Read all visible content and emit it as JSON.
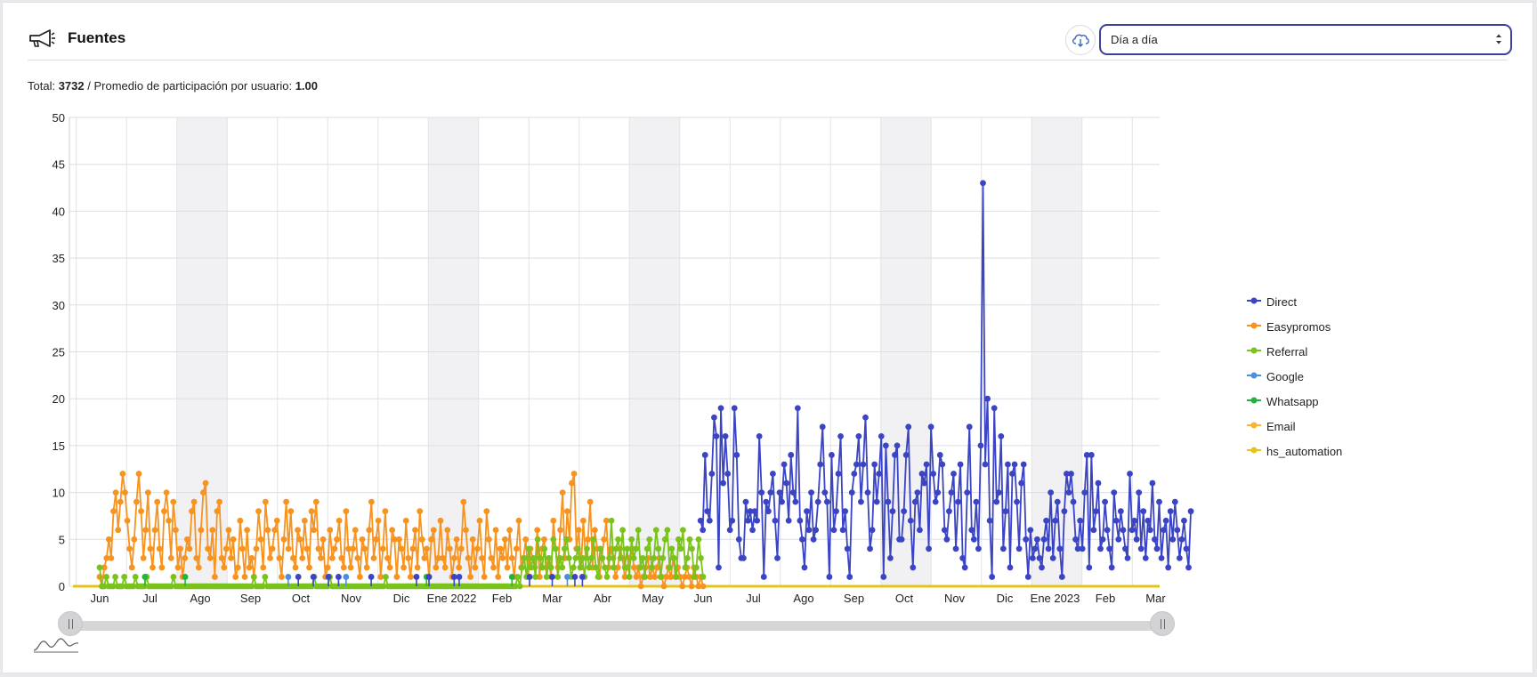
{
  "header": {
    "title": "Fuentes",
    "download_icon": "cloud-download-icon",
    "section_icon": "megaphone-icon",
    "period_select": {
      "value": "Día a día",
      "options_visible": [
        "Día a día"
      ]
    }
  },
  "summary": {
    "total_label": "Total:",
    "total_value": "3732",
    "separator": "/",
    "avg_label": "Promedio de participación por usuario:",
    "avg_value": "1.00"
  },
  "legend": [
    {
      "name": "Direct",
      "color": "#3a44c4"
    },
    {
      "name": "Easypromos",
      "color": "#f7931e"
    },
    {
      "name": "Referral",
      "color": "#7ac31c"
    },
    {
      "name": "Google",
      "color": "#4a8fe0"
    },
    {
      "name": "Whatsapp",
      "color": "#22b43c"
    },
    {
      "name": "Email",
      "color": "#fbb32b"
    },
    {
      "name": "hs_automation",
      "color": "#e5c419"
    }
  ],
  "chart_data": {
    "type": "line",
    "ylim": [
      0,
      50
    ],
    "yticks": [
      0,
      5,
      10,
      15,
      20,
      25,
      30,
      35,
      40,
      45,
      50
    ],
    "grid": true,
    "legend_position": "right",
    "x_ticks": [
      "Jun",
      "Jul",
      "Ago",
      "Sep",
      "Oct",
      "Nov",
      "Dic",
      "Ene 2022",
      "Feb",
      "Mar",
      "Abr",
      "May",
      "Jun",
      "Jul",
      "Ago",
      "Sep",
      "Oct",
      "Nov",
      "Dic",
      "Ene 2023",
      "Feb",
      "Mar"
    ],
    "weekend_bands": [
      2,
      7,
      11,
      16,
      19
    ],
    "series": [
      {
        "name": "Easypromos",
        "color": "#f7931e",
        "x_range": [
          0,
          12.0
        ],
        "values": [
          1,
          0,
          2,
          3,
          5,
          3,
          8,
          10,
          6,
          9,
          12,
          10,
          7,
          4,
          2,
          5,
          9,
          12,
          8,
          3,
          6,
          10,
          4,
          2,
          6,
          9,
          4,
          2,
          8,
          10,
          7,
          3,
          9,
          6,
          2,
          4,
          1,
          3,
          5,
          4,
          8,
          9,
          3,
          2,
          6,
          10,
          11,
          4,
          3,
          6,
          1,
          8,
          9,
          3,
          2,
          4,
          6,
          3,
          5,
          1,
          2,
          7,
          4,
          1,
          6,
          2,
          3,
          1,
          4,
          8,
          5,
          2,
          9,
          6,
          3,
          4,
          6,
          7,
          3,
          1,
          5,
          9,
          4,
          8,
          3,
          2,
          6,
          5,
          3,
          7,
          4,
          2,
          8,
          6,
          9,
          4,
          3,
          5,
          1,
          2,
          6,
          3,
          4,
          5,
          7,
          3,
          2,
          8,
          4,
          2,
          4,
          6,
          3,
          1,
          5,
          4,
          2,
          6,
          9,
          3,
          5,
          7,
          1,
          4,
          8,
          3,
          2,
          6,
          5,
          1,
          5,
          4,
          2,
          7,
          3,
          1,
          4,
          6,
          2,
          8,
          5,
          3,
          4,
          1,
          5,
          6,
          2,
          3,
          7,
          3,
          2,
          6,
          4,
          1,
          3,
          5,
          2,
          4,
          9,
          6,
          3,
          1,
          5,
          2,
          4,
          7,
          3,
          1,
          8,
          5,
          3,
          2,
          6,
          1,
          4,
          3,
          5,
          2,
          6,
          3,
          1,
          4,
          7,
          2,
          3,
          5,
          1,
          4,
          3,
          2,
          6,
          1,
          4,
          5,
          2,
          3,
          1,
          7,
          4,
          2,
          6,
          10,
          3,
          8,
          5,
          11,
          12,
          4,
          6,
          2,
          7,
          3,
          5,
          9,
          2,
          6,
          4,
          1,
          3,
          5,
          7,
          2,
          4,
          3,
          1,
          2,
          4,
          3,
          1,
          2,
          3,
          4,
          2,
          1,
          2,
          0,
          1,
          2,
          3,
          1,
          2,
          1,
          2,
          3,
          1,
          0,
          1,
          2,
          1,
          3,
          1,
          2,
          1,
          0,
          1,
          2,
          1,
          0,
          2,
          1,
          0,
          1,
          0
        ]
      },
      {
        "name": "Referral",
        "color": "#7ac31c",
        "x_range": [
          0,
          12.0
        ],
        "values": [
          2,
          0,
          0,
          1,
          0,
          0,
          0,
          1,
          0,
          0,
          0,
          1,
          0,
          0,
          0,
          0,
          1,
          0,
          0,
          0,
          0,
          1,
          0,
          0,
          0,
          0,
          0,
          0,
          0,
          0,
          0,
          0,
          0,
          1,
          0,
          0,
          0,
          0,
          0,
          0,
          0,
          0,
          0,
          0,
          0,
          0,
          0,
          0,
          0,
          0,
          0,
          0,
          0,
          0,
          0,
          0,
          0,
          0,
          0,
          0,
          0,
          0,
          0,
          0,
          0,
          0,
          0,
          0,
          0,
          1,
          0,
          0,
          0,
          0,
          1,
          0,
          0,
          0,
          0,
          0,
          0,
          0,
          0,
          0,
          0,
          0,
          0,
          0,
          0,
          0,
          0,
          0,
          0,
          0,
          0,
          0,
          1,
          0,
          0,
          0,
          0,
          0,
          0,
          1,
          0,
          0,
          0,
          0,
          0,
          0,
          0,
          0,
          0,
          0,
          0,
          0,
          0,
          0,
          0,
          0,
          0,
          0,
          0,
          0,
          0,
          0,
          0,
          0,
          1,
          0,
          0,
          0,
          0,
          0,
          0,
          0,
          0,
          0,
          0,
          0,
          0,
          0,
          0,
          0,
          0,
          0,
          0,
          0,
          0,
          0,
          0,
          0,
          0,
          0,
          0,
          0,
          0,
          0,
          0,
          0,
          0,
          0,
          0,
          0,
          0,
          0,
          0,
          0,
          0,
          0,
          0,
          0,
          0,
          0,
          0,
          0,
          0,
          0,
          0,
          0,
          0,
          0,
          0,
          0,
          0,
          0,
          0,
          1,
          0,
          2,
          3,
          1,
          4,
          2,
          3,
          1,
          5,
          3,
          2,
          4,
          1,
          3,
          2,
          5,
          4,
          1,
          3,
          2,
          4,
          5,
          3,
          1,
          2,
          3,
          4,
          2,
          3,
          1,
          4,
          2,
          3,
          5,
          2,
          1,
          4,
          3,
          2,
          1,
          3,
          7,
          2,
          4,
          5,
          3,
          6,
          2,
          4,
          1,
          5,
          3,
          4,
          6,
          2,
          3,
          1,
          4,
          5,
          2,
          3,
          6,
          4,
          1,
          3,
          5,
          6,
          2,
          4,
          3,
          1,
          5,
          4,
          6,
          2,
          3,
          5,
          4,
          1,
          2,
          5,
          3,
          1
        ]
      },
      {
        "name": "Direct",
        "color": "#3a44c4",
        "x_range": [
          0,
          21.7
        ],
        "sparse_early": [
          [
            3.95,
            1
          ],
          [
            4.25,
            1
          ],
          [
            4.55,
            1
          ],
          [
            4.75,
            1
          ],
          [
            5.4,
            1
          ],
          [
            6.3,
            1
          ],
          [
            6.55,
            1
          ],
          [
            7.05,
            1
          ],
          [
            7.15,
            1
          ],
          [
            8.55,
            1
          ],
          [
            9.0,
            1
          ],
          [
            9.45,
            1
          ],
          [
            9.6,
            1
          ]
        ],
        "x_start": 11.95,
        "values": [
          7,
          6,
          14,
          8,
          7,
          12,
          18,
          16,
          2,
          19,
          11,
          16,
          12,
          6,
          7,
          19,
          14,
          5,
          3,
          3,
          9,
          7,
          8,
          6,
          8,
          7,
          16,
          10,
          1,
          9,
          8,
          10,
          12,
          7,
          3,
          10,
          9,
          13,
          11,
          7,
          14,
          10,
          9,
          19,
          7,
          5,
          2,
          8,
          6,
          10,
          5,
          6,
          9,
          13,
          17,
          10,
          9,
          1,
          14,
          6,
          8,
          12,
          16,
          6,
          8,
          4,
          1,
          10,
          12,
          13,
          16,
          9,
          13,
          18,
          10,
          4,
          6,
          13,
          9,
          12,
          16,
          1,
          15,
          9,
          3,
          8,
          14,
          15,
          5,
          5,
          8,
          14,
          17,
          7,
          2,
          9,
          10,
          6,
          12,
          11,
          13,
          4,
          17,
          12,
          9,
          10,
          14,
          13,
          6,
          5,
          8,
          10,
          12,
          4,
          9,
          13,
          3,
          2,
          10,
          17,
          6,
          5,
          9,
          4,
          15,
          43,
          13,
          20,
          7,
          1,
          19,
          9,
          10,
          16,
          4,
          8,
          13,
          2,
          12,
          13,
          9,
          4,
          11,
          13,
          5,
          1,
          6,
          3,
          4,
          5,
          3,
          2,
          5,
          7,
          4,
          10,
          3,
          7,
          9,
          4,
          1,
          8,
          12,
          10,
          12,
          9,
          5,
          4,
          7,
          4,
          10,
          14,
          2,
          14,
          6,
          8,
          11,
          4,
          5,
          9,
          6,
          4,
          2,
          10,
          7,
          5,
          8,
          6,
          4,
          3,
          12,
          6,
          7,
          5,
          10,
          4,
          8,
          3,
          7,
          6,
          11,
          5,
          4,
          9,
          3,
          6,
          7,
          2,
          8,
          5,
          9,
          6,
          3,
          5,
          7,
          4,
          2,
          8
        ]
      },
      {
        "name": "Google",
        "color": "#4a8fe0",
        "x_range": [
          0,
          12.0
        ],
        "sparse_early": [
          [
            3.75,
            1
          ],
          [
            4.9,
            1
          ],
          [
            9.3,
            1
          ]
        ]
      },
      {
        "name": "Whatsapp",
        "color": "#22b43c",
        "x_range": [
          0,
          12.0
        ],
        "sparse_early": [
          [
            0.9,
            1
          ],
          [
            1.7,
            1
          ],
          [
            6.5,
            1
          ],
          [
            8.2,
            1
          ]
        ]
      },
      {
        "name": "Email",
        "color": "#fbb32b",
        "x_range": [
          0,
          21.7
        ],
        "values": [
          0
        ]
      },
      {
        "name": "hs_automation",
        "color": "#e5c419",
        "x_range": [
          0,
          21.7
        ],
        "values": [
          0
        ]
      }
    ]
  }
}
